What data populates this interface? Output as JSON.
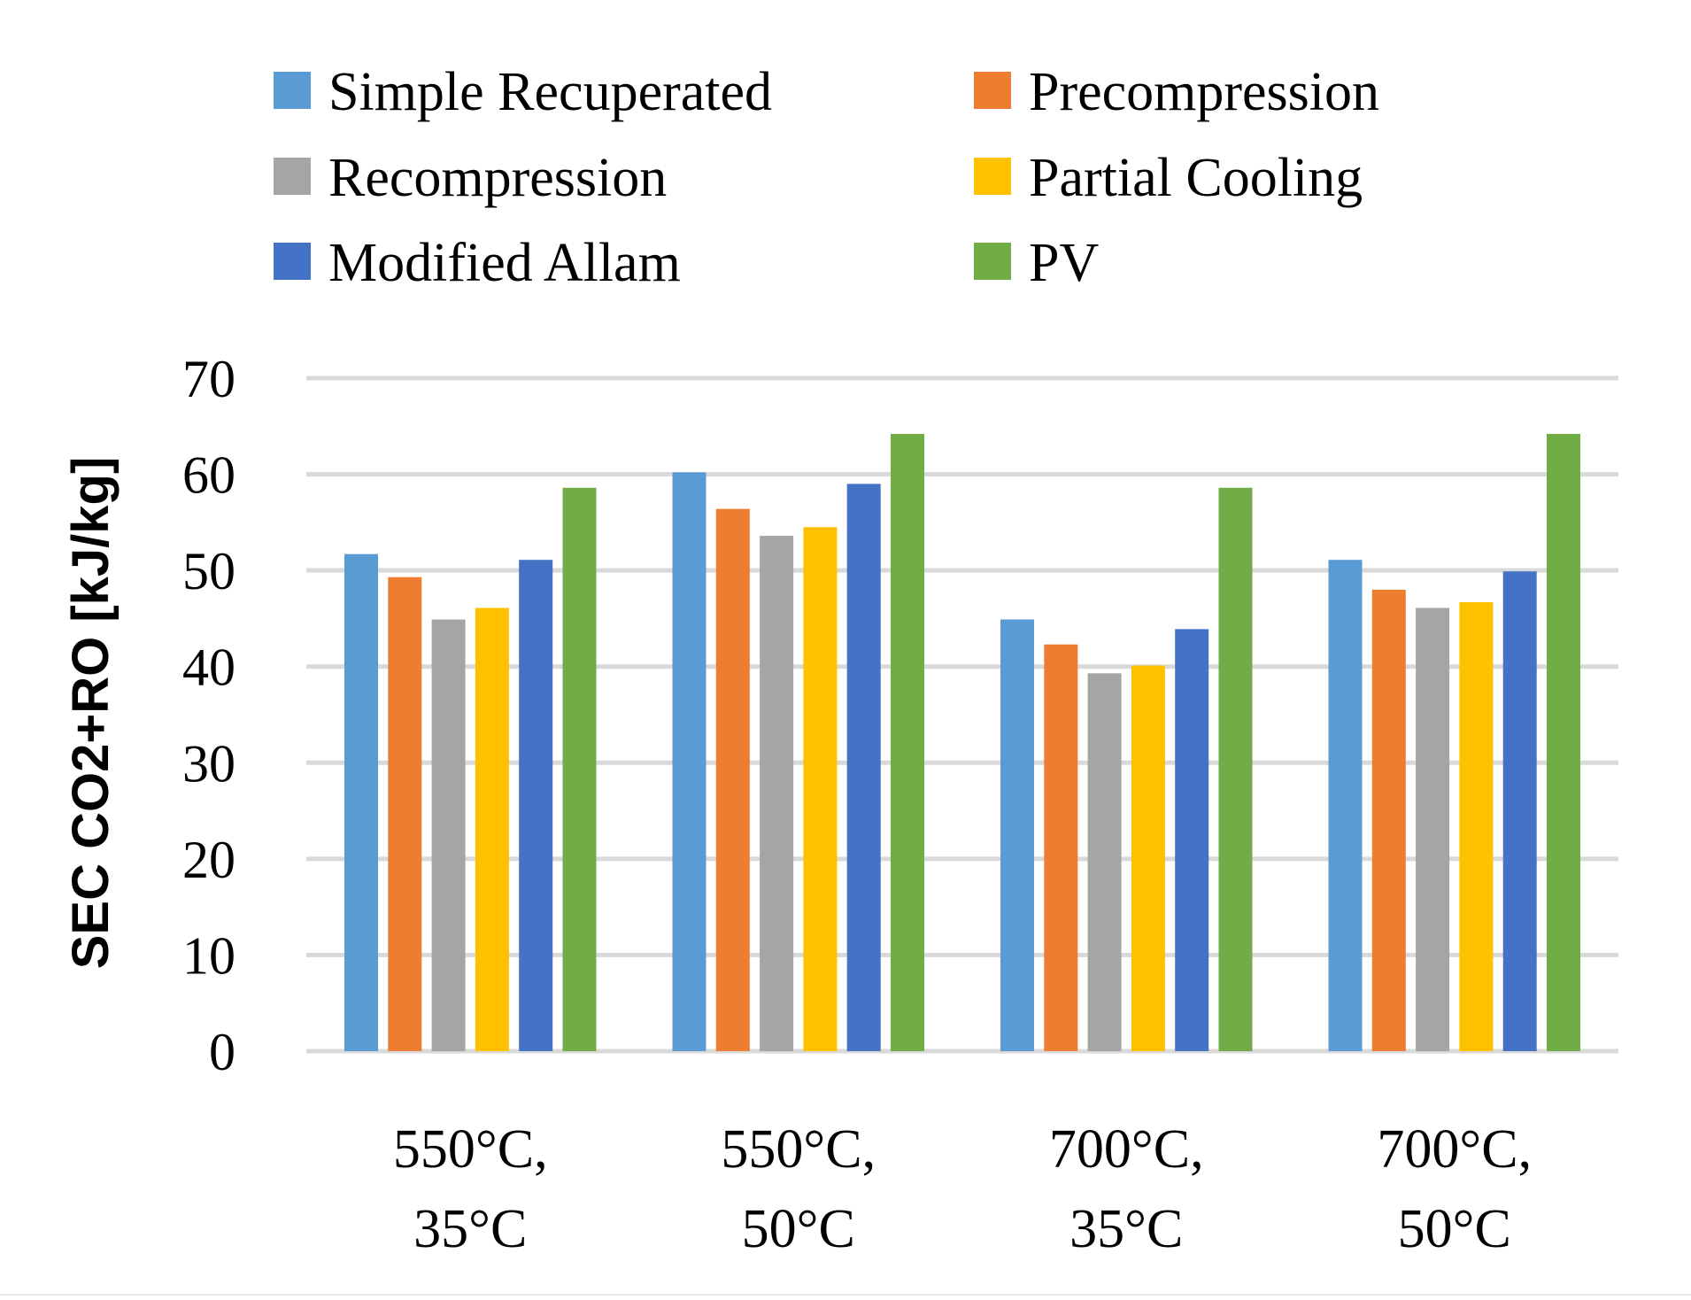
{
  "chart_data": {
    "type": "bar",
    "title": "",
    "xlabel": "",
    "ylabel": "SEC CO2+RO [kJ/kg]",
    "ylim": [
      0,
      70
    ],
    "yticks": [
      0,
      10,
      20,
      30,
      40,
      50,
      60,
      70
    ],
    "grid": true,
    "legend_position": "top",
    "categories": [
      [
        "550°C,",
        "35°C"
      ],
      [
        "550°C,",
        "50°C"
      ],
      [
        "700°C,",
        "35°C"
      ],
      [
        "700°C,",
        "50°C"
      ]
    ],
    "series": [
      {
        "name": "Simple Recuperated",
        "color": "#5B9BD5",
        "values": [
          51.7,
          60.2,
          44.9,
          51.1
        ]
      },
      {
        "name": "Precompression",
        "color": "#ED7D31",
        "values": [
          49.3,
          56.4,
          42.3,
          48.0
        ]
      },
      {
        "name": "Recompression",
        "color": "#A5A5A5",
        "values": [
          44.9,
          53.6,
          39.3,
          46.1
        ]
      },
      {
        "name": "Partial Cooling",
        "color": "#FFC000",
        "values": [
          46.1,
          54.5,
          40.1,
          46.7
        ]
      },
      {
        "name": "Modified Allam",
        "color": "#4472C4",
        "values": [
          51.1,
          59.0,
          43.9,
          49.9
        ]
      },
      {
        "name": "PV",
        "color": "#70AD47",
        "values": [
          58.6,
          64.2,
          58.6,
          64.2
        ]
      }
    ]
  }
}
